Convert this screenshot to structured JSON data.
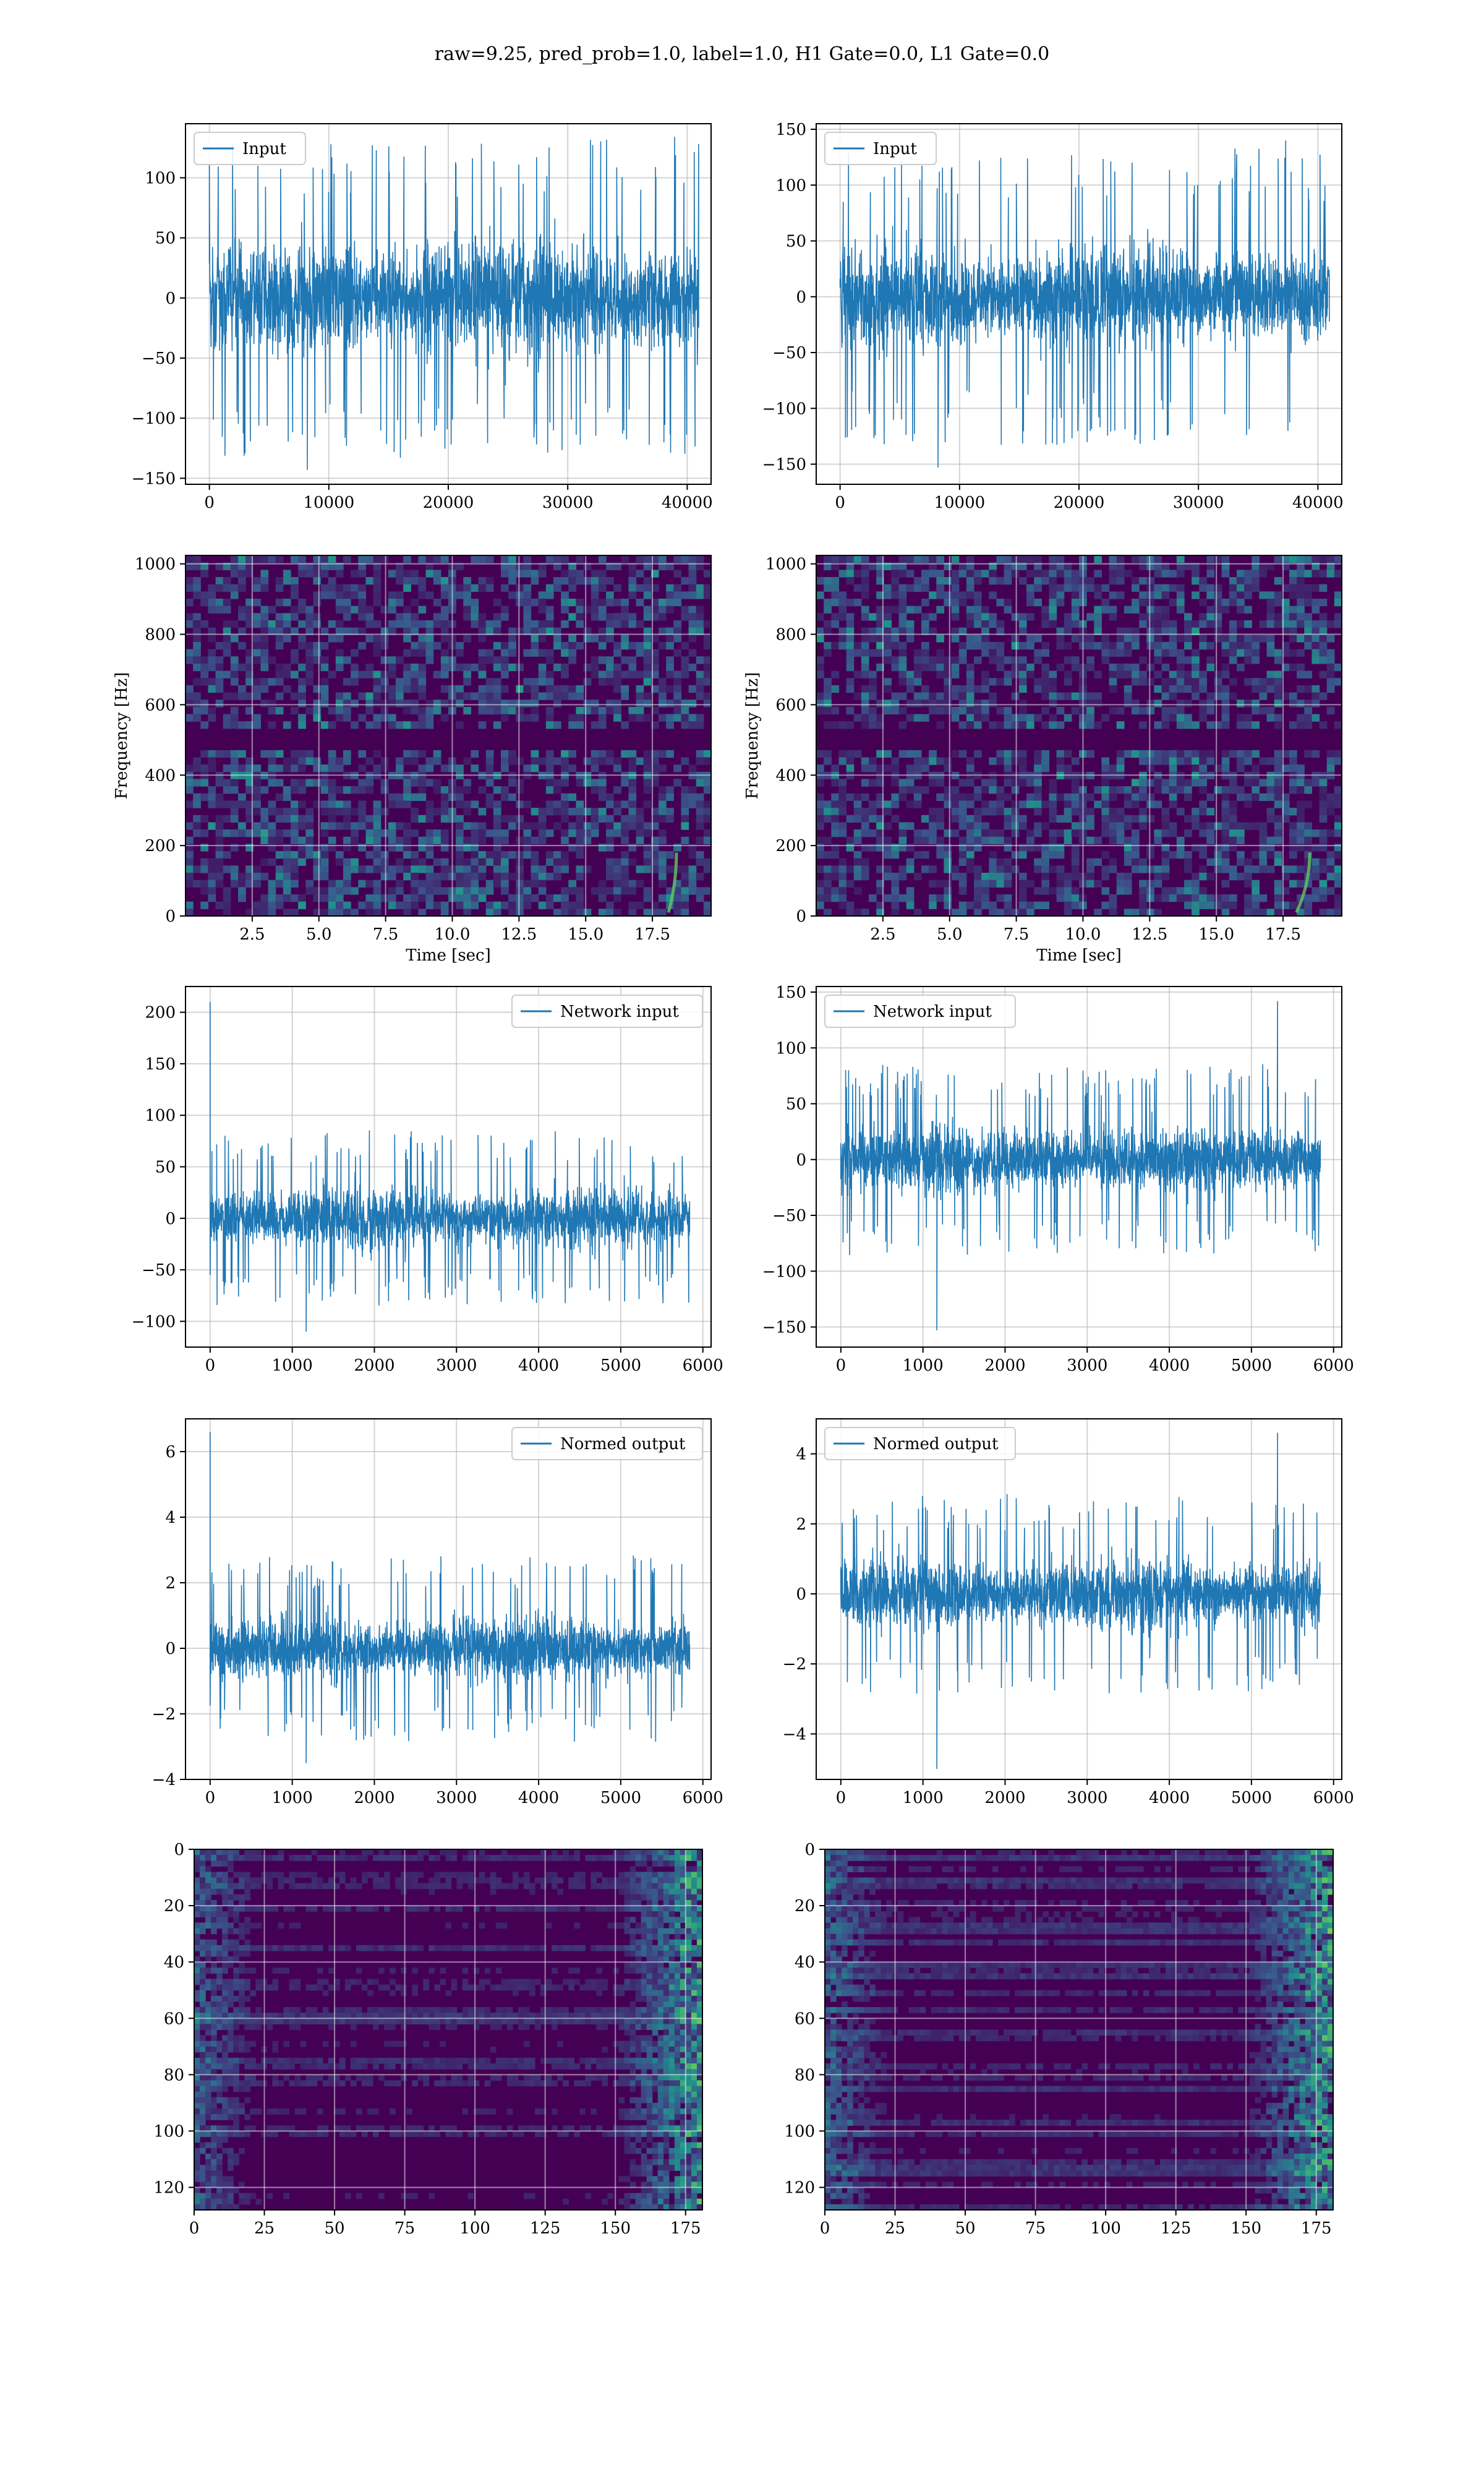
{
  "figure_title": "raw=9.25, pred_prob=1.0, label=1.0, H1 Gate=0.0, L1 Gate=0.0",
  "colors": {
    "series": "#1f77b4",
    "grid": "#d9d9d9",
    "viridis_dark": "#440154",
    "viridis_mid": "#21918c",
    "viridis_bright": "#fde725"
  },
  "chart_data": [
    {
      "type": "line",
      "id": "input-h1",
      "title": "",
      "legend": [
        "Input"
      ],
      "legend_loc": "upper left",
      "xlabel": "",
      "ylabel": "",
      "xlim": [
        -2000,
        42000
      ],
      "ylim": [
        -155,
        145
      ],
      "xticks": [
        0,
        10000,
        20000,
        30000,
        40000
      ],
      "yticks": [
        -150,
        -100,
        -50,
        0,
        50,
        100
      ],
      "n_samples": 40960,
      "envelope": {
        "core": [
          -70,
          70
        ],
        "peak_max": 134,
        "peak_min": -143
      },
      "grid": true
    },
    {
      "type": "line",
      "id": "input-l1",
      "title": "",
      "legend": [
        "Input"
      ],
      "legend_loc": "upper left",
      "xlabel": "",
      "ylabel": "",
      "xlim": [
        -2000,
        42000
      ],
      "ylim": [
        -168,
        155
      ],
      "xticks": [
        0,
        10000,
        20000,
        30000,
        40000
      ],
      "yticks": [
        -150,
        -100,
        -50,
        0,
        50,
        100,
        150
      ],
      "n_samples": 40960,
      "envelope": {
        "core": [
          -70,
          70
        ],
        "peak_max": 140,
        "peak_min": -153
      },
      "grid": true
    },
    {
      "type": "heatmap",
      "id": "spectrogram-h1",
      "title": "",
      "xlabel": "Time [sec]",
      "ylabel": "Frequency [Hz]",
      "xlim": [
        0,
        19.7
      ],
      "ylim": [
        0,
        1024
      ],
      "xticks": [
        2.5,
        5.0,
        7.5,
        10.0,
        12.5,
        15.0,
        17.5
      ],
      "yticks": [
        0,
        200,
        400,
        600,
        800,
        1000
      ],
      "colormap": "viridis",
      "grid": true,
      "features": {
        "dark_band_hz": [
          485,
          515
        ],
        "chirp_time_sec": [
          18.1,
          18.4
        ]
      }
    },
    {
      "type": "heatmap",
      "id": "spectrogram-l1",
      "title": "",
      "xlabel": "Time [sec]",
      "ylabel": "Frequency [Hz]",
      "xlim": [
        0,
        19.7
      ],
      "ylim": [
        0,
        1024
      ],
      "xticks": [
        2.5,
        5.0,
        7.5,
        10.0,
        12.5,
        15.0,
        17.5
      ],
      "yticks": [
        0,
        200,
        400,
        600,
        800,
        1000
      ],
      "colormap": "viridis",
      "grid": true,
      "features": {
        "dark_band_hz": [
          485,
          515
        ],
        "chirp_time_sec": [
          18.0,
          18.5
        ]
      }
    },
    {
      "type": "line",
      "id": "network-input-h1",
      "title": "",
      "legend": [
        "Network input"
      ],
      "legend_loc": "upper right",
      "xlabel": "",
      "ylabel": "",
      "xlim": [
        -300,
        6100
      ],
      "ylim": [
        -125,
        225
      ],
      "xticks": [
        0,
        1000,
        2000,
        3000,
        4000,
        5000,
        6000
      ],
      "yticks": [
        -100,
        -50,
        0,
        50,
        100,
        150,
        200
      ],
      "n_samples": 5840,
      "envelope": {
        "core": [
          -45,
          45
        ],
        "peak_max": 210,
        "peak_min": -110
      },
      "grid": true
    },
    {
      "type": "line",
      "id": "network-input-l1",
      "title": "",
      "legend": [
        "Network input"
      ],
      "legend_loc": "upper left",
      "xlabel": "",
      "ylabel": "",
      "xlim": [
        -300,
        6100
      ],
      "ylim": [
        -168,
        155
      ],
      "xticks": [
        0,
        1000,
        2000,
        3000,
        4000,
        5000,
        6000
      ],
      "yticks": [
        -150,
        -100,
        -50,
        0,
        50,
        100,
        150
      ],
      "n_samples": 5840,
      "envelope": {
        "core": [
          -45,
          45
        ],
        "peak_max": 142,
        "peak_min": -153
      },
      "grid": true
    },
    {
      "type": "line",
      "id": "normed-output-h1",
      "title": "",
      "legend": [
        "Normed output"
      ],
      "legend_loc": "upper right",
      "xlabel": "",
      "ylabel": "",
      "xlim": [
        -300,
        6100
      ],
      "ylim": [
        -4.0,
        7.0
      ],
      "xticks": [
        0,
        1000,
        2000,
        3000,
        4000,
        5000,
        6000
      ],
      "yticks": [
        -4,
        -2,
        0,
        2,
        4,
        6
      ],
      "n_samples": 5840,
      "envelope": {
        "core": [
          -1.5,
          1.5
        ],
        "peak_max": 6.6,
        "peak_min": -3.5
      },
      "grid": true
    },
    {
      "type": "line",
      "id": "normed-output-l1",
      "title": "",
      "legend": [
        "Normed output"
      ],
      "legend_loc": "upper left",
      "xlabel": "",
      "ylabel": "",
      "xlim": [
        -300,
        6100
      ],
      "ylim": [
        -5.3,
        5.0
      ],
      "xticks": [
        0,
        1000,
        2000,
        3000,
        4000,
        5000,
        6000
      ],
      "yticks": [
        -4,
        -2,
        0,
        2,
        4
      ],
      "n_samples": 5840,
      "envelope": {
        "core": [
          -1.5,
          1.5
        ],
        "peak_max": 4.6,
        "peak_min": -5.0
      },
      "grid": true
    },
    {
      "type": "heatmap",
      "id": "feature-map-h1",
      "title": "",
      "xlabel": "",
      "ylabel": "",
      "xlim": [
        0,
        181
      ],
      "ylim": [
        128,
        0
      ],
      "xticks": [
        0,
        25,
        50,
        75,
        100,
        125,
        150,
        175
      ],
      "yticks": [
        0,
        20,
        40,
        60,
        80,
        100,
        120
      ],
      "colormap": "viridis",
      "grid": true,
      "rows": 128,
      "cols": 182
    },
    {
      "type": "heatmap",
      "id": "feature-map-l1",
      "title": "",
      "xlabel": "",
      "ylabel": "",
      "xlim": [
        0,
        181
      ],
      "ylim": [
        128,
        0
      ],
      "xticks": [
        0,
        25,
        50,
        75,
        100,
        125,
        150,
        175
      ],
      "yticks": [
        0,
        20,
        40,
        60,
        80,
        100,
        120
      ],
      "colormap": "viridis",
      "grid": true,
      "rows": 128,
      "cols": 182
    }
  ]
}
